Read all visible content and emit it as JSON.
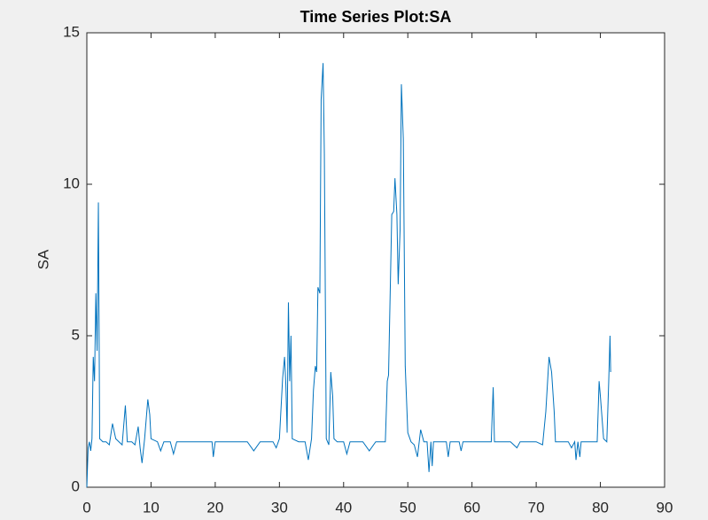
{
  "chart_data": {
    "type": "line",
    "title": "Time Series Plot:SA",
    "y_label": "SA",
    "x": [
      0,
      0.2,
      0.4,
      0.6,
      0.8,
      1.0,
      1.2,
      1.4,
      1.6,
      1.8,
      2.0,
      2.5,
      3,
      3.5,
      4,
      4.5,
      5,
      5.5,
      6,
      6.3,
      7,
      7.5,
      8,
      8.3,
      8.6,
      9,
      9.5,
      9.8,
      10,
      11,
      11.5,
      12,
      13,
      13.5,
      14,
      16,
      18,
      19.5,
      19.7,
      20,
      25,
      26,
      27,
      29,
      29.5,
      30,
      30.5,
      30.8,
      31,
      31.2,
      31.4,
      31.6,
      31.8,
      32,
      33,
      34,
      34.5,
      35,
      35.3,
      35.6,
      35.8,
      36,
      36.3,
      36.5,
      36.8,
      37,
      37.3,
      37.7,
      38,
      38.3,
      38.5,
      39,
      40,
      40.5,
      41,
      43,
      44,
      45,
      46.5,
      46.8,
      47,
      47.5,
      47.8,
      48,
      48.3,
      48.5,
      48.8,
      49,
      49.3,
      49.6,
      50,
      50.5,
      51,
      51.5,
      52,
      52.5,
      53,
      53.3,
      53.6,
      53.8,
      54,
      56,
      56.3,
      56.6,
      58,
      58.3,
      58.6,
      63,
      63.3,
      63.5,
      66,
      67,
      67.5,
      70,
      71,
      71.5,
      72,
      72.4,
      72.8,
      73,
      75,
      75.5,
      76,
      76.2,
      76.5,
      76.8,
      77,
      79,
      79.5,
      79.8,
      80,
      80.5,
      81,
      81.3,
      81.5,
      81.6
    ],
    "series": [
      {
        "name": "SA",
        "color": "#0072bd",
        "values": [
          0,
          1.3,
          1.5,
          1.2,
          1.6,
          4.3,
          3.5,
          6.4,
          4.5,
          9.4,
          1.6,
          1.5,
          1.5,
          1.4,
          2.1,
          1.6,
          1.5,
          1.4,
          2.7,
          1.5,
          1.5,
          1.4,
          2.0,
          1.3,
          0.8,
          1.6,
          2.9,
          2.4,
          1.6,
          1.5,
          1.2,
          1.5,
          1.5,
          1.1,
          1.5,
          1.5,
          1.5,
          1.5,
          1.0,
          1.5,
          1.5,
          1.2,
          1.5,
          1.5,
          1.3,
          1.6,
          3.6,
          4.3,
          3.4,
          1.8,
          6.1,
          3.5,
          5.0,
          1.6,
          1.5,
          1.5,
          0.9,
          1.6,
          3.2,
          4.0,
          3.8,
          6.6,
          6.4,
          12.8,
          14.0,
          11,
          1.6,
          1.4,
          3.8,
          3.0,
          1.6,
          1.5,
          1.5,
          1.1,
          1.5,
          1.5,
          1.2,
          1.5,
          1.5,
          3.5,
          3.7,
          9.0,
          9.1,
          10.2,
          9.0,
          6.7,
          8.5,
          13.3,
          11.5,
          4.0,
          1.8,
          1.5,
          1.4,
          1.0,
          1.9,
          1.5,
          1.5,
          0.5,
          1.5,
          0.7,
          1.5,
          1.5,
          1.0,
          1.5,
          1.5,
          1.2,
          1.5,
          1.5,
          3.3,
          1.5,
          1.5,
          1.3,
          1.5,
          1.5,
          1.4,
          2.5,
          4.3,
          3.8,
          2.5,
          1.5,
          1.5,
          1.3,
          1.5,
          0.9,
          1.5,
          1.0,
          1.5,
          1.5,
          1.5,
          3.5,
          3.0,
          1.6,
          1.5,
          3.5,
          5.0,
          3.8
        ]
      }
    ],
    "xlim": [
      0,
      90
    ],
    "xticks": [
      0,
      10,
      20,
      30,
      40,
      50,
      60,
      70,
      80,
      90
    ],
    "ylim": [
      0,
      15
    ],
    "yticks": [
      0,
      5,
      10,
      15
    ]
  }
}
